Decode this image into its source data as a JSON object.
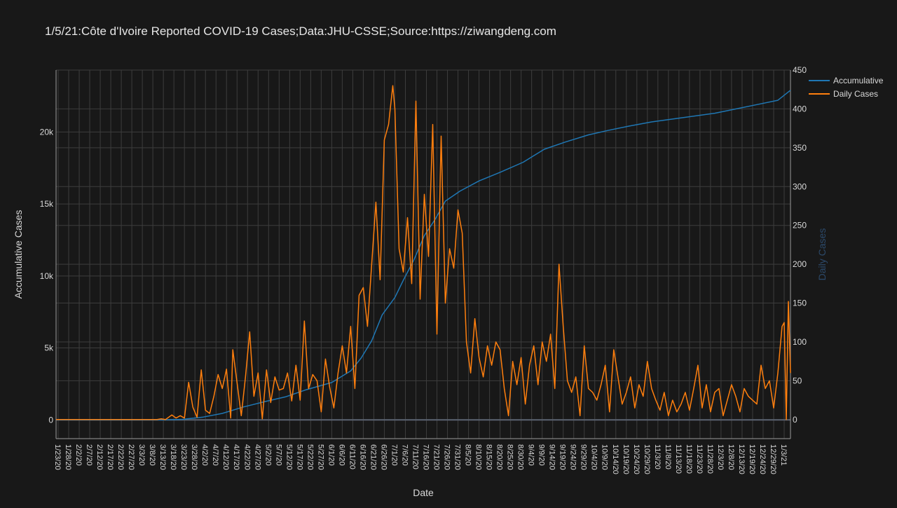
{
  "colors": {
    "background": "#181818",
    "grid": "#3d3d3d",
    "axis_line": "#9a9a9a",
    "text": "#d9d9d9",
    "accumulative": "#1f77b4",
    "daily": "#ff7f0e",
    "y2_label": "#2c4a6b"
  },
  "chart_data": {
    "type": "line",
    "title": "1/5/21:Côte d'Ivoire Reported COVID-19 Cases;Data:JHU-CSSE;Source:https://ziwangdeng.com",
    "xlabel": "Date",
    "ylabel": "Accumulative Cases",
    "y2label": "Daily Cases",
    "x_range": [
      "2020-01-22",
      "2021-01-05"
    ],
    "ylim": [
      -1300,
      24300
    ],
    "y2lim": [
      -24.5,
      450
    ],
    "grid": true,
    "legend_position": "right",
    "x_tick_labels": [
      "1/23/20",
      "1/28/20",
      "2/2/20",
      "2/7/20",
      "2/12/20",
      "2/17/20",
      "2/22/20",
      "2/27/20",
      "3/3/20",
      "3/8/20",
      "3/13/20",
      "3/18/20",
      "3/23/20",
      "3/28/20",
      "4/2/20",
      "4/7/20",
      "4/12/20",
      "4/17/20",
      "4/22/20",
      "4/27/20",
      "5/2/20",
      "5/7/20",
      "5/12/20",
      "5/17/20",
      "5/22/20",
      "5/27/20",
      "6/1/20",
      "6/6/20",
      "6/11/20",
      "6/16/20",
      "6/21/20",
      "6/26/20",
      "7/1/20",
      "7/6/20",
      "7/11/20",
      "7/16/20",
      "7/21/20",
      "7/26/20",
      "7/31/20",
      "8/5/20",
      "8/10/20",
      "8/15/20",
      "8/20/20",
      "8/25/20",
      "8/30/20",
      "9/4/20",
      "9/9/20",
      "9/14/20",
      "9/19/20",
      "9/24/20",
      "9/29/20",
      "10/4/20",
      "10/9/20",
      "10/14/20",
      "10/19/20",
      "10/24/20",
      "10/29/20",
      "11/3/20",
      "11/8/20",
      "11/13/20",
      "11/18/20",
      "11/23/20",
      "11/28/20",
      "12/3/20",
      "12/8/20",
      "12/13/20",
      "12/19/20",
      "12/24/20",
      "12/29/20",
      "1/3/21"
    ],
    "y_ticks": [
      {
        "value": 0,
        "label": "0"
      },
      {
        "value": 5000,
        "label": "5k"
      },
      {
        "value": 10000,
        "label": "10k"
      },
      {
        "value": 15000,
        "label": "15k"
      },
      {
        "value": 20000,
        "label": "20k"
      }
    ],
    "y2_ticks": [
      {
        "value": 0,
        "label": "0"
      },
      {
        "value": 50,
        "label": "50"
      },
      {
        "value": 100,
        "label": "100"
      },
      {
        "value": 150,
        "label": "150"
      },
      {
        "value": 200,
        "label": "200"
      },
      {
        "value": 250,
        "label": "250"
      },
      {
        "value": 300,
        "label": "300"
      },
      {
        "value": 350,
        "label": "350"
      },
      {
        "value": 400,
        "label": "400"
      },
      {
        "value": 450,
        "label": "450"
      }
    ],
    "series": [
      {
        "name": "Accumulative",
        "axis": "y",
        "points": [
          [
            "2020-01-22",
            0
          ],
          [
            "2020-03-10",
            0
          ],
          [
            "2020-03-22",
            40
          ],
          [
            "2020-04-01",
            200
          ],
          [
            "2020-04-10",
            450
          ],
          [
            "2020-04-20",
            900
          ],
          [
            "2020-05-01",
            1300
          ],
          [
            "2020-05-10",
            1600
          ],
          [
            "2020-05-20",
            2100
          ],
          [
            "2020-06-01",
            2600
          ],
          [
            "2020-06-10",
            3400
          ],
          [
            "2020-06-15",
            4300
          ],
          [
            "2020-06-20",
            5500
          ],
          [
            "2020-06-25",
            7300
          ],
          [
            "2020-07-01",
            8500
          ],
          [
            "2020-07-05",
            9700
          ],
          [
            "2020-07-10",
            11100
          ],
          [
            "2020-07-15",
            12800
          ],
          [
            "2020-07-20",
            13900
          ],
          [
            "2020-07-25",
            15200
          ],
          [
            "2020-08-01",
            15900
          ],
          [
            "2020-08-10",
            16600
          ],
          [
            "2020-08-20",
            17200
          ],
          [
            "2020-08-31",
            17900
          ],
          [
            "2020-09-10",
            18800
          ],
          [
            "2020-09-20",
            19300
          ],
          [
            "2020-10-01",
            19800
          ],
          [
            "2020-10-10",
            20100
          ],
          [
            "2020-10-20",
            20400
          ],
          [
            "2020-10-31",
            20700
          ],
          [
            "2020-11-10",
            20900
          ],
          [
            "2020-11-20",
            21100
          ],
          [
            "2020-11-30",
            21300
          ],
          [
            "2020-12-10",
            21600
          ],
          [
            "2020-12-20",
            21900
          ],
          [
            "2020-12-30",
            22200
          ],
          [
            "2021-01-05",
            22900
          ]
        ]
      },
      {
        "name": "Daily Cases",
        "axis": "y2",
        "points": [
          [
            "2020-01-22",
            0
          ],
          [
            "2020-03-10",
            0
          ],
          [
            "2020-03-12",
            1
          ],
          [
            "2020-03-14",
            0
          ],
          [
            "2020-03-17",
            6
          ],
          [
            "2020-03-19",
            2
          ],
          [
            "2020-03-21",
            5
          ],
          [
            "2020-03-23",
            2
          ],
          [
            "2020-03-25",
            48
          ],
          [
            "2020-03-27",
            16
          ],
          [
            "2020-03-29",
            3
          ],
          [
            "2020-03-31",
            64
          ],
          [
            "2020-04-02",
            12
          ],
          [
            "2020-04-04",
            8
          ],
          [
            "2020-04-06",
            30
          ],
          [
            "2020-04-08",
            58
          ],
          [
            "2020-04-10",
            40
          ],
          [
            "2020-04-12",
            65
          ],
          [
            "2020-04-14",
            2
          ],
          [
            "2020-04-15",
            90
          ],
          [
            "2020-04-17",
            48
          ],
          [
            "2020-04-19",
            5
          ],
          [
            "2020-04-21",
            55
          ],
          [
            "2020-04-23",
            113
          ],
          [
            "2020-04-25",
            30
          ],
          [
            "2020-04-27",
            60
          ],
          [
            "2020-04-29",
            1
          ],
          [
            "2020-05-01",
            64
          ],
          [
            "2020-05-03",
            22
          ],
          [
            "2020-05-05",
            55
          ],
          [
            "2020-05-07",
            38
          ],
          [
            "2020-05-09",
            40
          ],
          [
            "2020-05-11",
            60
          ],
          [
            "2020-05-13",
            24
          ],
          [
            "2020-05-15",
            70
          ],
          [
            "2020-05-17",
            25
          ],
          [
            "2020-05-19",
            127
          ],
          [
            "2020-05-21",
            40
          ],
          [
            "2020-05-23",
            58
          ],
          [
            "2020-05-25",
            50
          ],
          [
            "2020-05-27",
            10
          ],
          [
            "2020-05-29",
            78
          ],
          [
            "2020-05-31",
            42
          ],
          [
            "2020-06-02",
            15
          ],
          [
            "2020-06-04",
            60
          ],
          [
            "2020-06-06",
            95
          ],
          [
            "2020-06-08",
            60
          ],
          [
            "2020-06-10",
            120
          ],
          [
            "2020-06-12",
            40
          ],
          [
            "2020-06-14",
            160
          ],
          [
            "2020-06-16",
            170
          ],
          [
            "2020-06-18",
            120
          ],
          [
            "2020-06-20",
            200
          ],
          [
            "2020-06-22",
            280
          ],
          [
            "2020-06-24",
            180
          ],
          [
            "2020-06-26",
            360
          ],
          [
            "2020-06-28",
            380
          ],
          [
            "2020-06-30",
            430
          ],
          [
            "2020-07-01",
            400
          ],
          [
            "2020-07-03",
            220
          ],
          [
            "2020-07-05",
            190
          ],
          [
            "2020-07-07",
            260
          ],
          [
            "2020-07-09",
            175
          ],
          [
            "2020-07-11",
            410
          ],
          [
            "2020-07-13",
            155
          ],
          [
            "2020-07-15",
            290
          ],
          [
            "2020-07-17",
            210
          ],
          [
            "2020-07-19",
            380
          ],
          [
            "2020-07-21",
            110
          ],
          [
            "2020-07-23",
            365
          ],
          [
            "2020-07-25",
            150
          ],
          [
            "2020-07-27",
            220
          ],
          [
            "2020-07-29",
            195
          ],
          [
            "2020-07-31",
            270
          ],
          [
            "2020-08-02",
            240
          ],
          [
            "2020-08-04",
            100
          ],
          [
            "2020-08-06",
            60
          ],
          [
            "2020-08-08",
            130
          ],
          [
            "2020-08-10",
            80
          ],
          [
            "2020-08-12",
            55
          ],
          [
            "2020-08-14",
            95
          ],
          [
            "2020-08-16",
            70
          ],
          [
            "2020-08-18",
            100
          ],
          [
            "2020-08-20",
            90
          ],
          [
            "2020-08-22",
            40
          ],
          [
            "2020-08-24",
            5
          ],
          [
            "2020-08-26",
            75
          ],
          [
            "2020-08-28",
            45
          ],
          [
            "2020-08-30",
            80
          ],
          [
            "2020-09-01",
            20
          ],
          [
            "2020-09-03",
            70
          ],
          [
            "2020-09-05",
            95
          ],
          [
            "2020-09-07",
            45
          ],
          [
            "2020-09-09",
            100
          ],
          [
            "2020-09-11",
            75
          ],
          [
            "2020-09-13",
            110
          ],
          [
            "2020-09-15",
            40
          ],
          [
            "2020-09-17",
            200
          ],
          [
            "2020-09-19",
            120
          ],
          [
            "2020-09-21",
            50
          ],
          [
            "2020-09-23",
            35
          ],
          [
            "2020-09-25",
            55
          ],
          [
            "2020-09-27",
            5
          ],
          [
            "2020-09-29",
            95
          ],
          [
            "2020-10-01",
            40
          ],
          [
            "2020-10-03",
            35
          ],
          [
            "2020-10-05",
            25
          ],
          [
            "2020-10-07",
            45
          ],
          [
            "2020-10-09",
            70
          ],
          [
            "2020-10-11",
            10
          ],
          [
            "2020-10-13",
            90
          ],
          [
            "2020-10-15",
            55
          ],
          [
            "2020-10-17",
            20
          ],
          [
            "2020-10-19",
            35
          ],
          [
            "2020-10-21",
            55
          ],
          [
            "2020-10-23",
            15
          ],
          [
            "2020-10-25",
            45
          ],
          [
            "2020-10-27",
            30
          ],
          [
            "2020-10-29",
            75
          ],
          [
            "2020-10-31",
            40
          ],
          [
            "2020-11-02",
            25
          ],
          [
            "2020-11-04",
            12
          ],
          [
            "2020-11-06",
            35
          ],
          [
            "2020-11-08",
            5
          ],
          [
            "2020-11-10",
            25
          ],
          [
            "2020-11-12",
            10
          ],
          [
            "2020-11-14",
            20
          ],
          [
            "2020-11-16",
            35
          ],
          [
            "2020-11-18",
            12
          ],
          [
            "2020-11-20",
            40
          ],
          [
            "2020-11-22",
            70
          ],
          [
            "2020-11-24",
            15
          ],
          [
            "2020-11-26",
            45
          ],
          [
            "2020-11-28",
            10
          ],
          [
            "2020-11-30",
            35
          ],
          [
            "2020-12-02",
            40
          ],
          [
            "2020-12-04",
            5
          ],
          [
            "2020-12-06",
            25
          ],
          [
            "2020-12-08",
            45
          ],
          [
            "2020-12-10",
            30
          ],
          [
            "2020-12-12",
            10
          ],
          [
            "2020-12-14",
            40
          ],
          [
            "2020-12-16",
            30
          ],
          [
            "2020-12-18",
            25
          ],
          [
            "2020-12-20",
            20
          ],
          [
            "2020-12-22",
            70
          ],
          [
            "2020-12-24",
            40
          ],
          [
            "2020-12-26",
            50
          ],
          [
            "2020-12-28",
            15
          ],
          [
            "2020-12-30",
            60
          ],
          [
            "2021-01-01",
            120
          ],
          [
            "2021-01-02",
            125
          ],
          [
            "2021-01-03",
            0
          ],
          [
            "2021-01-04",
            152
          ],
          [
            "2021-01-05",
            60
          ]
        ]
      }
    ]
  }
}
